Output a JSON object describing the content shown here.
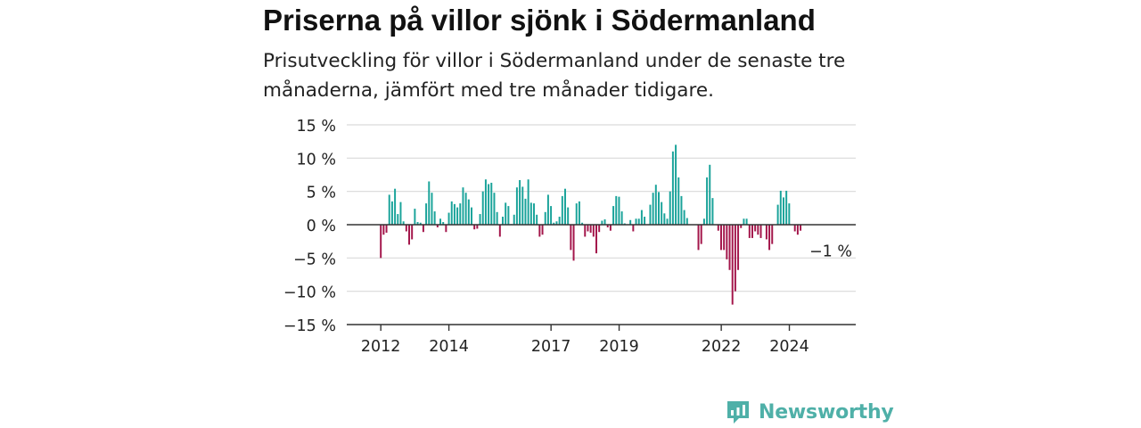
{
  "header": {
    "title": "Priserna på villor sjönk i Södermanland",
    "subtitle": "Prisutveckling för villor i Södermanland under de senaste tre månaderna, jämfört med tre månader tidigare."
  },
  "brand": {
    "name": "Newsworthy"
  },
  "colors": {
    "positive": "#1aa39a",
    "negative": "#a3154a",
    "grid": "#d9d9d9",
    "axis": "#333333",
    "text": "#222222"
  },
  "chart_data": {
    "type": "bar",
    "title": "",
    "xlabel": "",
    "ylabel": "",
    "ylim": [
      -15,
      15
    ],
    "y_ticks": [
      15,
      10,
      5,
      0,
      -5,
      -10,
      -15
    ],
    "y_tick_labels": [
      "15 %",
      "10 %",
      "5 %",
      "0 %",
      "−5 %",
      "−10 %",
      "−15 %"
    ],
    "x_tick_labels": [
      "2012",
      "2014",
      "2017",
      "2019",
      "2022",
      "2024"
    ],
    "x_tick_positions": [
      2012.0,
      2014.0,
      2017.0,
      2019.0,
      2022.0,
      2024.0
    ],
    "x_range": [
      2011.0,
      2025.95
    ],
    "x_start": 2012.0,
    "x_step_years": 0.0833,
    "annotation": {
      "label": "−1 %",
      "value": -1
    },
    "values": [
      -5,
      -1.5,
      -1.2,
      4.5,
      3.5,
      5.4,
      1.6,
      3.4,
      0.5,
      -1.0,
      -3.0,
      -2.2,
      2.4,
      0.4,
      0.3,
      -1.1,
      3.2,
      6.5,
      4.8,
      2.0,
      -0.4,
      0.9,
      0.4,
      -1.1,
      1.8,
      3.5,
      3.1,
      2.6,
      3.2,
      5.6,
      4.8,
      3.8,
      2.6,
      -0.7,
      -0.6,
      1.6,
      5.0,
      6.8,
      6.1,
      6.3,
      4.8,
      1.9,
      -1.8,
      1.2,
      3.3,
      2.8,
      0.1,
      1.5,
      5.6,
      6.7,
      5.7,
      3.9,
      6.8,
      3.3,
      3.2,
      1.5,
      -1.8,
      -1.5,
      1.9,
      4.5,
      2.8,
      0.3,
      0.5,
      1.2,
      4.3,
      5.4,
      2.6,
      -3.8,
      -5.4,
      3.2,
      3.5,
      0.3,
      -1.8,
      -1.0,
      -1.2,
      -1.8,
      -4.3,
      -1.1,
      0.6,
      0.8,
      -0.4,
      -0.9,
      2.8,
      4.3,
      4.2,
      2.0,
      0.2,
      0.0,
      0.7,
      -1.0,
      0.9,
      0.9,
      2.2,
      1.2,
      0.0,
      3.0,
      4.8,
      6.0,
      4.9,
      3.4,
      1.7,
      0.9,
      5.0,
      11.0,
      12.0,
      7.1,
      4.3,
      2.2,
      1.0,
      0.0,
      0.0,
      0.0,
      -3.8,
      -2.9,
      0.9,
      7.1,
      9.0,
      4.0,
      0.0,
      -0.9,
      -3.8,
      -3.8,
      -5.2,
      -6.8,
      -12.0,
      -10.0,
      -6.8,
      -0.5,
      0.9,
      0.9,
      -2.0,
      -2.0,
      -1.0,
      -1.5,
      -2.0,
      0.0,
      -2.2,
      -3.8,
      -2.9,
      0.0,
      3.0,
      5.1,
      4.1,
      5.1,
      3.2,
      0.0,
      -1.0,
      -1.5,
      -0.9
    ]
  }
}
